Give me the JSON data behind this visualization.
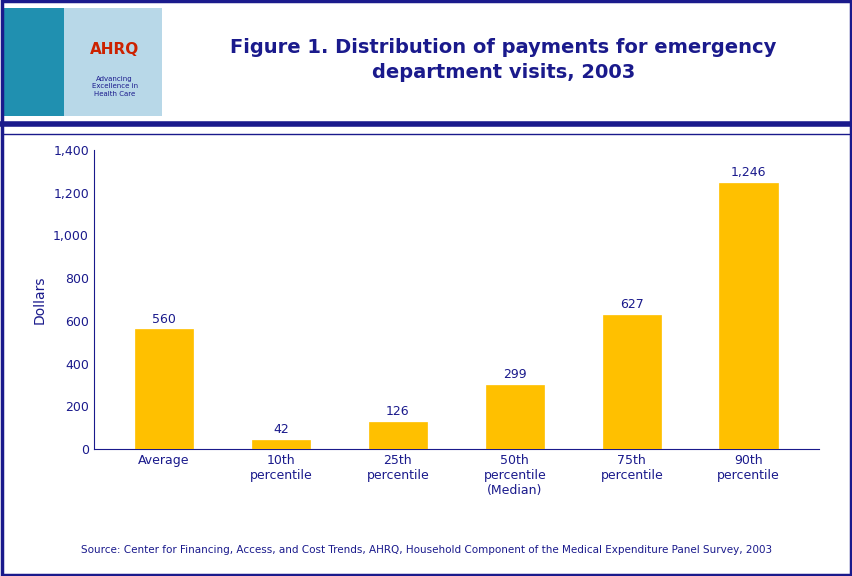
{
  "title": "Figure 1. Distribution of payments for emergency\ndepartment visits, 2003",
  "title_color": "#1a1a8c",
  "title_fontsize": 14,
  "categories": [
    "Average",
    "10th\npercentile",
    "25th\npercentile",
    "50th\npercentile\n(Median)",
    "75th\npercentile",
    "90th\npercentile"
  ],
  "values": [
    560,
    42,
    126,
    299,
    627,
    1246
  ],
  "value_labels": [
    "560",
    "42",
    "126",
    "299",
    "627",
    "1,246"
  ],
  "bar_color": "#FFC000",
  "bar_edgecolor": "#FFC000",
  "ylabel": "Dollars",
  "ylabel_color": "#1a1a8c",
  "ylabel_fontsize": 10,
  "ylim": [
    0,
    1400
  ],
  "yticks": [
    0,
    200,
    400,
    600,
    800,
    1000,
    1200,
    1400
  ],
  "ytick_labels": [
    "0",
    "200",
    "400",
    "600",
    "800",
    "1,000",
    "1,200",
    "1,400"
  ],
  "tick_color": "#1a1a8c",
  "tick_fontsize": 9,
  "xtick_fontsize": 9,
  "value_label_color": "#1a1a8c",
  "value_label_fontsize": 9,
  "source_text": "Source: Center for Financing, Access, and Cost Trends, AHRQ, Household Component of the Medical Expenditure Panel Survey, 2003",
  "source_color": "#1a1a8c",
  "source_fontsize": 7.5,
  "background_color": "#ffffff",
  "border_color": "#1a1a8c",
  "plot_bg_color": "#ffffff",
  "separator_color": "#1a1a8c",
  "figsize": [
    8.53,
    5.76
  ],
  "dpi": 100
}
